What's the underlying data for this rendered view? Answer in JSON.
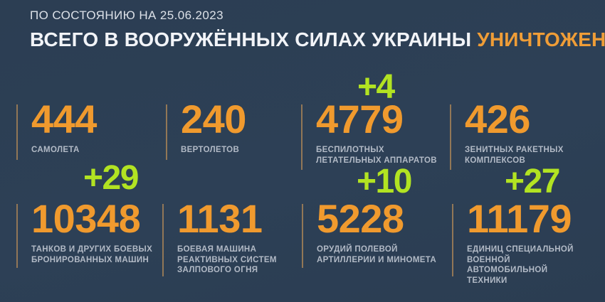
{
  "header": {
    "date_line": "ПО СОСТОЯНИЮ НА 25.06.2023",
    "title_main": "ВСЕГО В ВООРУЖЁННЫХ СИЛАХ УКРАИНЫ ",
    "title_accent": "УНИЧТОЖЕНО:"
  },
  "stats": [
    {
      "value": "444",
      "label": "САМОЛЕТА",
      "delta": ""
    },
    {
      "value": "240",
      "label": "ВЕРТОЛЕТОВ",
      "delta": ""
    },
    {
      "value": "4779",
      "label": "БЕСПИЛОТНЫХ\nЛЕТАТЕЛЬНЫХ АППАРАТОВ",
      "delta": "+4"
    },
    {
      "value": "426",
      "label": "ЗЕНИТНЫХ РАКЕТНЫХ\nКОМПЛЕКСОВ",
      "delta": ""
    },
    {
      "value": "10348",
      "label": "ТАНКОВ И ДРУГИХ БОЕВЫХ\nБРОНИРОВАННЫХ МАШИН",
      "delta": "+29"
    },
    {
      "value": "1131",
      "label": "БОЕВАЯ МАШИНА\nРЕАКТИВНЫХ СИСТЕМ\nЗАЛПОВОГО ОГНЯ",
      "delta": ""
    },
    {
      "value": "5228",
      "label": "ОРУДИЙ ПОЛЕВОЙ\nАРТИЛЛЕРИИ И МИНОМЕТА",
      "delta": "+10"
    },
    {
      "value": "11179",
      "label": "ЕДИНИЦ СПЕЦИАЛЬНОЙ\nВОЕННОЙ АВТОМОБИЛЬНОЙ\nТЕХНИКИ",
      "delta": "+27"
    }
  ],
  "colors": {
    "background": "#2D4056",
    "accent_orange": "#F09A2E",
    "title_accent_orange": "#EF9D37",
    "delta_green": "#B2E322",
    "label_gray": "#B2BAC6",
    "title_white": "#F2F4F8",
    "divider_tan": "#C99558"
  },
  "chart_data": {
    "type": "table",
    "title": "ВСЕГО В ВООРУЖЁННЫХ СИЛАХ УКРАИНЫ УНИЧТОЖЕНО:",
    "subtitle": "ПО СОСТОЯНИЮ НА 25.06.2023",
    "categories": [
      "САМОЛЕТА",
      "ВЕРТОЛЕТОВ",
      "БЕСПИЛОТНЫХ ЛЕТАТЕЛЬНЫХ АППАРАТОВ",
      "ЗЕНИТНЫХ РАКЕТНЫХ КОМПЛЕКСОВ",
      "ТАНКОВ И ДРУГИХ БОЕВЫХ БРОНИРОВАННЫХ МАШИН",
      "БОЕВАЯ МАШИНА РЕАКТИВНЫХ СИСТЕМ ЗАЛПОВОГО ОГНЯ",
      "ОРУДИЙ ПОЛЕВОЙ АРТИЛЛЕРИИ И МИНОМЕТА",
      "ЕДИНИЦ СПЕЦИАЛЬНОЙ ВОЕННОЙ АВТОМОБИЛЬНОЙ ТЕХНИКИ"
    ],
    "values": [
      444,
      240,
      4779,
      426,
      10348,
      1131,
      5228,
      11179
    ],
    "daily_increase_annotations": [
      null,
      null,
      4,
      null,
      29,
      null,
      10,
      27
    ],
    "layout": "2 rows x 4 columns stat grid, green overlay numbers mark daily increases"
  }
}
